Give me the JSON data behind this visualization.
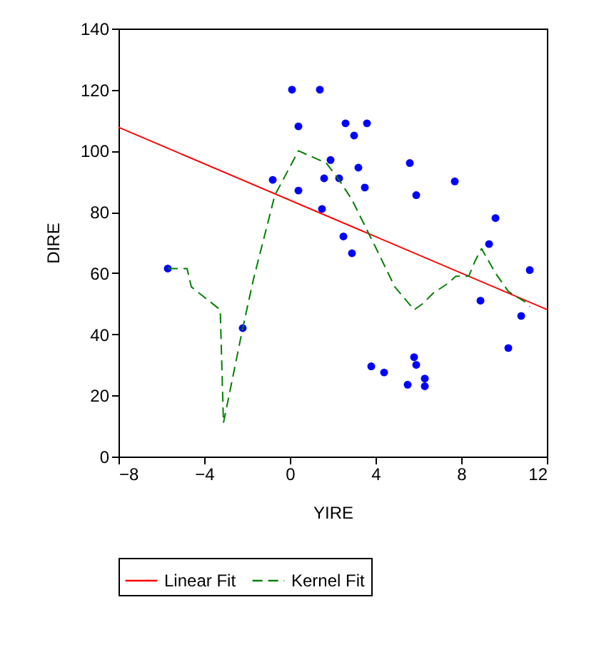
{
  "chart_data": {
    "type": "scatter",
    "xlabel": "YIRE",
    "ylabel": "DIRE",
    "xlim": [
      -8,
      12
    ],
    "xticks": [
      -8,
      -4,
      0,
      4,
      8,
      12
    ],
    "ylim": [
      0,
      140
    ],
    "yticks": [
      0,
      20,
      40,
      60,
      80,
      100,
      120,
      140
    ],
    "grid": false,
    "legend": "bottom",
    "series": [
      {
        "type": "scatter",
        "color": "#0000ff",
        "marker": "circle",
        "x": [
          0.1,
          1.4,
          0.4,
          1.9,
          -0.8,
          1.6,
          0.4,
          1.5,
          -5.7,
          2.6,
          3.6,
          3.0,
          3.2,
          2.3,
          5.6,
          3.5,
          5.9,
          7.7,
          9.6,
          2.5,
          2.9,
          9.3,
          11.2,
          8.9,
          10.8,
          10.2,
          3.8,
          4.4,
          5.8,
          5.9,
          6.3,
          5.5,
          6.3,
          -2.2
        ],
        "values": [
          120,
          120,
          108,
          97,
          90.5,
          91,
          87,
          81,
          61.5,
          109,
          109,
          105,
          94.5,
          91,
          96,
          88,
          85.5,
          90,
          78,
          72,
          66.5,
          69.5,
          61,
          51,
          46,
          35.5,
          29.5,
          27.5,
          32.5,
          30,
          25.5,
          23.5,
          23,
          42
        ]
      },
      {
        "type": "line",
        "name": "Linear Fit",
        "color": "#ff0000",
        "line_style": "solid",
        "marker": "none",
        "x": [
          -8,
          12
        ],
        "values": [
          107.7,
          48.1
        ]
      },
      {
        "type": "line",
        "name": "Kernel Fit",
        "color": "#008000",
        "line_style": "dashed",
        "marker": "none",
        "x": [
          -5.7,
          -4.8,
          -4.6,
          -3.25,
          -3.1,
          -2.2,
          -1.7,
          -0.7,
          0.4,
          1.7,
          2.3,
          2.9,
          3.5,
          4.0,
          4.9,
          5.8,
          6.2,
          6.7,
          7.35,
          7.75,
          8.35,
          8.65,
          8.95,
          9.6,
          10.2,
          11.0,
          11.2
        ],
        "values": [
          61.5,
          61.5,
          55.5,
          48,
          11,
          42,
          58,
          85.5,
          100,
          96,
          90.5,
          84,
          75.5,
          68.5,
          55.5,
          48,
          50,
          53.5,
          56.5,
          59,
          59,
          64,
          68,
          60,
          54,
          50.5,
          49
        ]
      }
    ]
  }
}
